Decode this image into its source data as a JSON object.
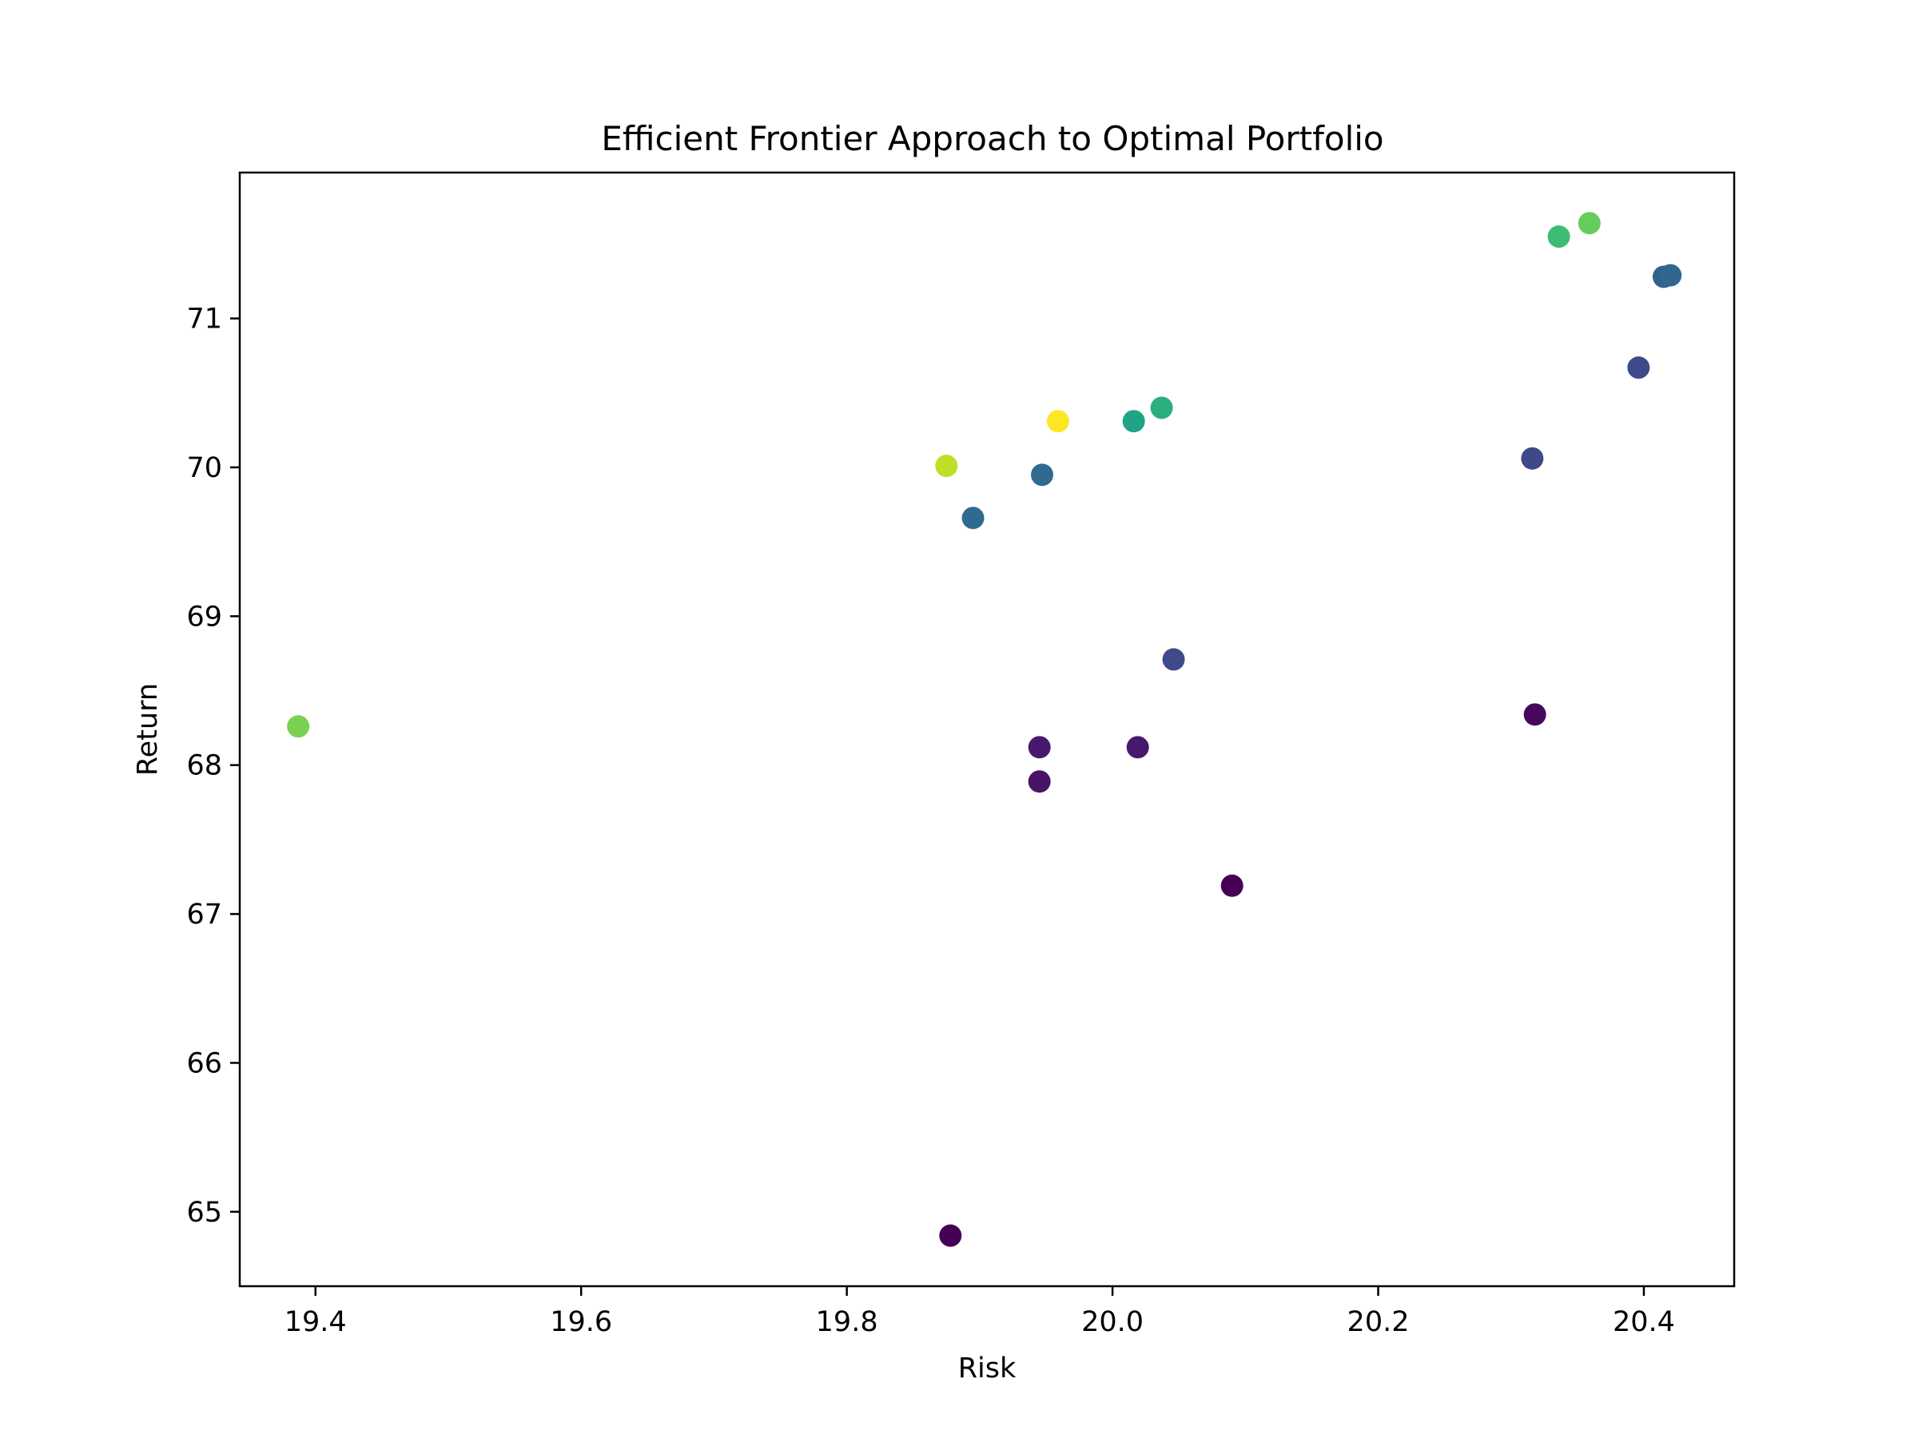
{
  "chart_data": {
    "type": "scatter",
    "title": "Efficient Frontier Approach to Optimal Portfolio",
    "xlabel": "Risk",
    "ylabel": "Return",
    "xlim": [
      19.343,
      20.468
    ],
    "ylim": [
      64.5,
      71.98
    ],
    "x_ticks": [
      19.4,
      19.6,
      19.8,
      20.0,
      20.2,
      20.4
    ],
    "x_tick_labels": [
      "19.4",
      "19.6",
      "19.8",
      "20.0",
      "20.2",
      "20.4"
    ],
    "y_ticks": [
      65,
      66,
      67,
      68,
      69,
      70,
      71
    ],
    "y_tick_labels": [
      "65",
      "66",
      "67",
      "68",
      "69",
      "70",
      "71"
    ],
    "grid": false,
    "legend": false,
    "colormap": "viridis",
    "points": [
      {
        "x": 19.878,
        "y": 64.84,
        "color": "#440154"
      },
      {
        "x": 20.09,
        "y": 67.19,
        "color": "#440154"
      },
      {
        "x": 20.318,
        "y": 68.34,
        "color": "#46085c"
      },
      {
        "x": 19.945,
        "y": 67.89,
        "color": "#471365"
      },
      {
        "x": 19.945,
        "y": 68.12,
        "color": "#46196e"
      },
      {
        "x": 20.019,
        "y": 68.12,
        "color": "#46196e"
      },
      {
        "x": 20.046,
        "y": 68.71,
        "color": "#3e4a89"
      },
      {
        "x": 20.316,
        "y": 70.06,
        "color": "#3e4989"
      },
      {
        "x": 20.396,
        "y": 70.67,
        "color": "#3e4a89"
      },
      {
        "x": 19.895,
        "y": 69.66,
        "color": "#2f6b8e"
      },
      {
        "x": 19.947,
        "y": 69.95,
        "color": "#2f6b8e"
      },
      {
        "x": 20.415,
        "y": 71.28,
        "color": "#33638d"
      },
      {
        "x": 20.42,
        "y": 71.29,
        "color": "#31678e"
      },
      {
        "x": 20.016,
        "y": 70.31,
        "color": "#20a386"
      },
      {
        "x": 20.037,
        "y": 70.4,
        "color": "#2ab07f"
      },
      {
        "x": 20.336,
        "y": 71.55,
        "color": "#3dbc74"
      },
      {
        "x": 20.359,
        "y": 71.64,
        "color": "#67cc5c"
      },
      {
        "x": 19.387,
        "y": 68.26,
        "color": "#7ad151"
      },
      {
        "x": 19.875,
        "y": 70.01,
        "color": "#bddf26"
      },
      {
        "x": 19.959,
        "y": 70.31,
        "color": "#fde725"
      }
    ]
  }
}
